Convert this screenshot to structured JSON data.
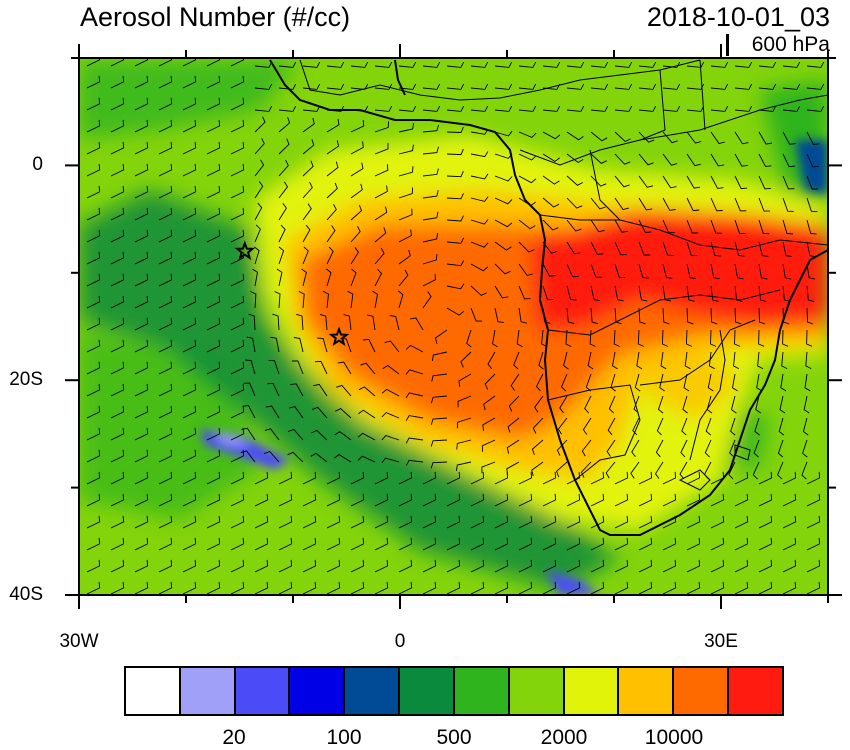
{
  "title_left": "Aerosol Number (#/cc)",
  "title_right": "2018-10-01_03",
  "level_label": "600 hPa",
  "lat_labels": [
    {
      "text": "0",
      "lat": 0
    },
    {
      "text": "20S",
      "lat": -20
    },
    {
      "text": "40S",
      "lat": -40
    }
  ],
  "lon_labels": [
    {
      "text": "30W",
      "lon": -30
    },
    {
      "text": "0",
      "lon": 0
    },
    {
      "text": "30E",
      "lon": 30
    }
  ],
  "map_extent": {
    "lon_min": -30,
    "lon_max": 40,
    "lat_min": -40,
    "lat_max": 10
  },
  "colorbar": {
    "colors": [
      "#ffffff",
      "#a0a0f8",
      "#4b4bf8",
      "#0000e6",
      "#004a96",
      "#0a8a3c",
      "#2fb41e",
      "#84d40c",
      "#e2f30a",
      "#ffc000",
      "#ff6a00",
      "#ff1b10"
    ],
    "labels": [
      {
        "text": "20",
        "after_box": 2
      },
      {
        "text": "100",
        "after_box": 4
      },
      {
        "text": "500",
        "after_box": 6
      },
      {
        "text": "2000",
        "after_box": 8
      },
      {
        "text": "10000",
        "after_box": 10
      }
    ]
  },
  "markers": [
    {
      "name": "star",
      "lon": -14.5,
      "lat": -8
    },
    {
      "name": "star",
      "lon": -5.7,
      "lat": -16
    }
  ]
}
